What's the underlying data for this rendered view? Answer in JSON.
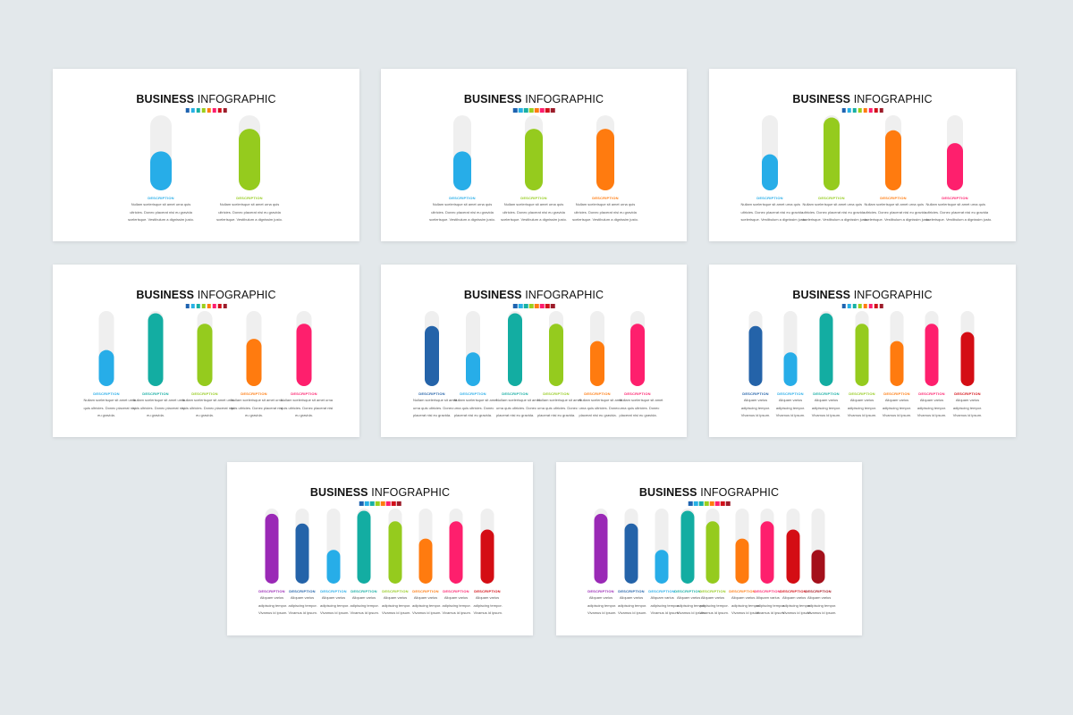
{
  "title_bold": "BUSINESS",
  "title_light": "INFOGRAPHIC",
  "swatch_colors": [
    "#1e63b0",
    "#27b1e6",
    "#17b0a4",
    "#9bcf1c",
    "#ff7c10",
    "#fe1d6f",
    "#d2101a",
    "#9c1c2a"
  ],
  "track_color": "#efefef",
  "chart_data": [
    {
      "type": "bar",
      "label": "DESCRIPTION",
      "bars": [
        {
          "color": "#27ade8",
          "value": 0.52
        },
        {
          "color": "#95cb1e",
          "value": 0.82
        }
      ],
      "text_lines": [
        "Nullam scelerisque sit amet urna quis",
        "ultricies. Donec placerat nisi eu gravida",
        "scelerisque. Vestibulum a dignissim justo."
      ]
    },
    {
      "type": "bar",
      "label": "DESCRIPTION",
      "bars": [
        {
          "color": "#27ade8",
          "value": 0.52
        },
        {
          "color": "#95cb1e",
          "value": 0.82
        },
        {
          "color": "#ff7b0f",
          "value": 0.82
        }
      ],
      "text_lines": [
        "Nullam scelerisque sit amet urna quis",
        "ultricies. Donec placerat nisi eu gravida",
        "scelerisque. Vestibulum a dignissim justo."
      ]
    },
    {
      "type": "bar",
      "label": "DESCRIPTION",
      "bars": [
        {
          "color": "#27ade8",
          "value": 0.48
        },
        {
          "color": "#95cb1e",
          "value": 0.97
        },
        {
          "color": "#ff7b0f",
          "value": 0.8
        },
        {
          "color": "#fe1f6d",
          "value": 0.63
        }
      ],
      "text_lines": [
        "Nullam scelerisque sit amet urna quis",
        "ultricies. Donec placerat nisi eu gravida",
        "scelerisque. Vestibulum a dignissim justo."
      ]
    },
    {
      "type": "bar",
      "label": "DESCRIPTION",
      "bars": [
        {
          "color": "#27ade8",
          "value": 0.48
        },
        {
          "color": "#13ada2",
          "value": 0.97
        },
        {
          "color": "#95cb1e",
          "value": 0.83
        },
        {
          "color": "#ff7b0f",
          "value": 0.63
        },
        {
          "color": "#fe1f6d",
          "value": 0.83
        }
      ],
      "text_lines": [
        "Nullam scelerisque sit amet urna",
        "quis ultricies. Donec placerat nisi",
        "eu gravida."
      ]
    },
    {
      "type": "bar",
      "label": "DESCRIPTION",
      "bars": [
        {
          "color": "#2463a9",
          "value": 0.8
        },
        {
          "color": "#27ade8",
          "value": 0.45
        },
        {
          "color": "#13ada2",
          "value": 0.97
        },
        {
          "color": "#95cb1e",
          "value": 0.83
        },
        {
          "color": "#ff7b0f",
          "value": 0.6
        },
        {
          "color": "#fe1f6d",
          "value": 0.83
        }
      ],
      "text_lines": [
        "Nullam scelerisque sit amet",
        "urna quis ultricies. Donec",
        "placerat nisi eu gravida."
      ]
    },
    {
      "type": "bar",
      "label": "DESCRIPTION",
      "bars": [
        {
          "color": "#2463a9",
          "value": 0.8
        },
        {
          "color": "#27ade8",
          "value": 0.45
        },
        {
          "color": "#13ada2",
          "value": 0.97
        },
        {
          "color": "#95cb1e",
          "value": 0.83
        },
        {
          "color": "#ff7b0f",
          "value": 0.6
        },
        {
          "color": "#fe1f6d",
          "value": 0.83
        },
        {
          "color": "#d40d14",
          "value": 0.72
        }
      ],
      "text_lines": [
        "Aliquam varius",
        "adipiscing tempor.",
        "Vivamus id ipsum."
      ]
    },
    {
      "type": "bar",
      "label": "DESCRIPTION",
      "bars": [
        {
          "color": "#9a29b6",
          "value": 0.93
        },
        {
          "color": "#2463a9",
          "value": 0.8
        },
        {
          "color": "#27ade8",
          "value": 0.45
        },
        {
          "color": "#13ada2",
          "value": 0.97
        },
        {
          "color": "#95cb1e",
          "value": 0.83
        },
        {
          "color": "#ff7b0f",
          "value": 0.6
        },
        {
          "color": "#fe1f6d",
          "value": 0.83
        },
        {
          "color": "#d40d14",
          "value": 0.72
        }
      ],
      "text_lines": [
        "Aliquam varius",
        "adipiscing tempor.",
        "Vivamus id ipsum."
      ]
    },
    {
      "type": "bar",
      "label": "DESCRIPTION",
      "bars": [
        {
          "color": "#9a29b6",
          "value": 0.93
        },
        {
          "color": "#2463a9",
          "value": 0.8
        },
        {
          "color": "#27ade8",
          "value": 0.45
        },
        {
          "color": "#13ada2",
          "value": 0.97
        },
        {
          "color": "#95cb1e",
          "value": 0.83
        },
        {
          "color": "#ff7b0f",
          "value": 0.6
        },
        {
          "color": "#fe1f6d",
          "value": 0.83
        },
        {
          "color": "#d40d14",
          "value": 0.72
        },
        {
          "color": "#a4101b",
          "value": 0.45
        }
      ],
      "text_lines": [
        "Aliquam varius",
        "adipiscing tempor.",
        "Vivamus id ipsum."
      ]
    }
  ]
}
